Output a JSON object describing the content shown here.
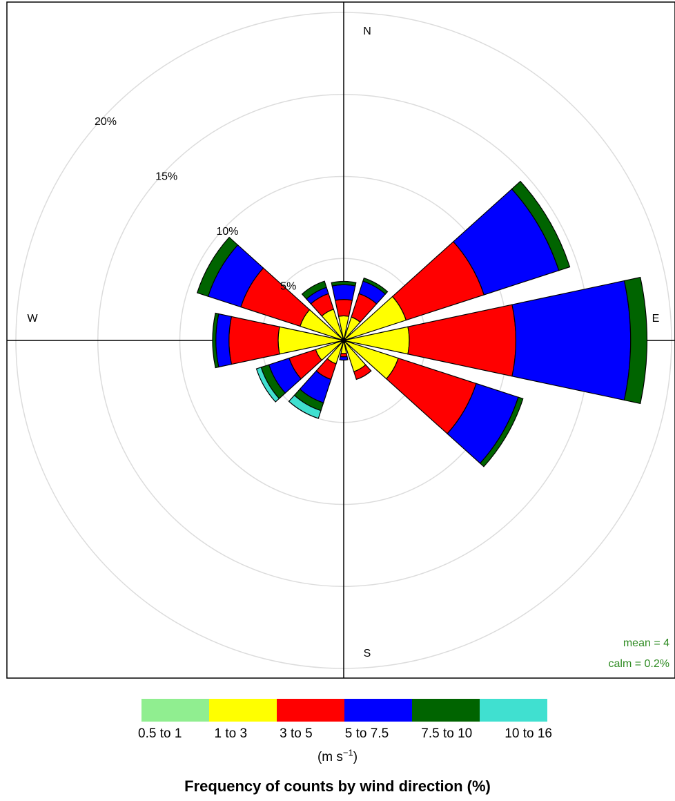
{
  "chart_data": {
    "type": "polar-bar",
    "title": "Frequency of counts by wind direction (%)",
    "direction_labels": {
      "n": "N",
      "e": "E",
      "s": "S",
      "w": "W"
    },
    "radial_ticks": [
      {
        "value": 5,
        "label": "5%"
      },
      {
        "value": 10,
        "label": "10%"
      },
      {
        "value": 15,
        "label": "15%"
      },
      {
        "value": 20,
        "label": "20%"
      }
    ],
    "rmax": 20,
    "grid": true,
    "stats": {
      "mean": "mean = 4",
      "calm": "calm = 0.2%"
    },
    "legend": {
      "placement": "bottom",
      "unit_text": "(m s",
      "unit_exponent": "−1",
      "unit_close": ")",
      "bins": [
        {
          "label": "0.5 to 1",
          "color": "#90ee90"
        },
        {
          "label": "1 to 3",
          "color": "#ffff00"
        },
        {
          "label": "3 to 5",
          "color": "#ff0000"
        },
        {
          "label": "5 to 7.5",
          "color": "#0000ff"
        },
        {
          "label": "7.5 to 10",
          "color": "#006400"
        },
        {
          "label": "10 to 16",
          "color": "#40e0d0"
        }
      ]
    },
    "directions_deg": [
      0,
      30,
      60,
      90,
      120,
      150,
      180,
      210,
      240,
      270,
      300,
      330
    ],
    "cumulative": [
      [
        0.15,
        1.5,
        2.5,
        3.4,
        3.6,
        3.6
      ],
      [
        0.15,
        1.5,
        3.0,
        3.8,
        4.0,
        4.0
      ],
      [
        0.15,
        4.0,
        9.0,
        13.8,
        14.5,
        14.5
      ],
      [
        0.15,
        4.0,
        10.5,
        17.5,
        18.5,
        18.5
      ],
      [
        0.15,
        3.5,
        8.5,
        11.2,
        11.5,
        11.5
      ],
      [
        0.15,
        2.0,
        2.5,
        2.5,
        2.5,
        2.5
      ],
      [
        0.15,
        0.8,
        1.0,
        1.2,
        1.2,
        1.2
      ],
      [
        0.15,
        1.5,
        2.5,
        4.0,
        4.5,
        5.0
      ],
      [
        0.15,
        1.8,
        3.5,
        4.8,
        5.3,
        5.6
      ],
      [
        0.15,
        4.0,
        7.0,
        7.8,
        8.0,
        8.0
      ],
      [
        0.15,
        2.8,
        6.6,
        8.7,
        9.4,
        9.4
      ],
      [
        0.15,
        2.0,
        3.0,
        3.4,
        3.8,
        3.8
      ]
    ]
  }
}
